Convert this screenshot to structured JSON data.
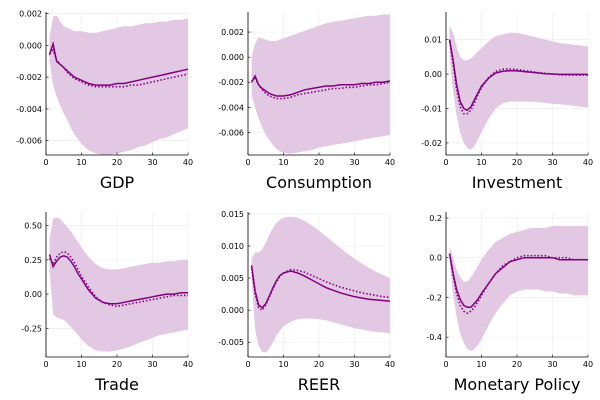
{
  "colors": {
    "line": "#800080",
    "band": "#e2c8e2",
    "grid": "#ebebeb",
    "axis": "#000000"
  },
  "chart_data": [
    {
      "type": "line",
      "title": "GDP",
      "xlim": [
        0,
        40
      ],
      "ylim": [
        -0.0069,
        0.0021
      ],
      "xticks": [
        0,
        10,
        20,
        30,
        40
      ],
      "yticks": [
        -0.006,
        -0.004,
        -0.002,
        0.0,
        0.002
      ],
      "yticklabels": [
        "-0.006",
        "-0.004",
        "-0.002",
        "0.000",
        "0.002"
      ],
      "grid": true,
      "x": [
        1,
        2,
        3,
        4,
        5,
        6,
        7,
        8,
        9,
        10,
        12,
        14,
        16,
        18,
        20,
        22,
        24,
        26,
        28,
        30,
        32,
        34,
        36,
        38,
        40
      ],
      "series": [
        {
          "style": "solid",
          "values": [
            -0.0006,
            0.0001,
            -0.001,
            -0.0012,
            -0.0014,
            -0.0016,
            -0.0018,
            -0.002,
            -0.0021,
            -0.0022,
            -0.0024,
            -0.0025,
            -0.0025,
            -0.0025,
            -0.0024,
            -0.0024,
            -0.0023,
            -0.0022,
            -0.0021,
            -0.002,
            -0.0019,
            -0.0018,
            -0.0017,
            -0.0016,
            -0.0015
          ]
        },
        {
          "style": "dotted",
          "values": [
            -0.0005,
            -0.0003,
            -0.0009,
            -0.0012,
            -0.0014,
            -0.0017,
            -0.0019,
            -0.0021,
            -0.0022,
            -0.0023,
            -0.0025,
            -0.0026,
            -0.0026,
            -0.0026,
            -0.0026,
            -0.0026,
            -0.0025,
            -0.0025,
            -0.0024,
            -0.0023,
            -0.0022,
            -0.0021,
            -0.002,
            -0.0019,
            -0.0018
          ]
        }
      ],
      "band": {
        "upper": [
          0.0005,
          0.0018,
          0.0019,
          0.0015,
          0.0012,
          0.0011,
          0.001,
          0.0009,
          0.0009,
          0.0009,
          0.0008,
          0.0008,
          0.0009,
          0.001,
          0.0011,
          0.0012,
          0.0012,
          0.0013,
          0.0014,
          0.0014,
          0.0015,
          0.0015,
          0.0016,
          0.0016,
          0.0017
        ],
        "lower": [
          -0.001,
          -0.0025,
          -0.0032,
          -0.0038,
          -0.0043,
          -0.0047,
          -0.0052,
          -0.0056,
          -0.0059,
          -0.0062,
          -0.0066,
          -0.0068,
          -0.0069,
          -0.0069,
          -0.0068,
          -0.0067,
          -0.0066,
          -0.0064,
          -0.0063,
          -0.0061,
          -0.0059,
          -0.0058,
          -0.0056,
          -0.0054,
          -0.0052
        ]
      }
    },
    {
      "type": "line",
      "title": "Consumption",
      "xlim": [
        0,
        40
      ],
      "ylim": [
        -0.0078,
        0.0036
      ],
      "xticks": [
        0,
        10,
        20,
        30,
        40
      ],
      "yticks": [
        -0.006,
        -0.004,
        -0.002,
        0.0,
        0.002
      ],
      "yticklabels": [
        "-0.006",
        "-0.004",
        "-0.002",
        "0.000",
        "0.002"
      ],
      "grid": true,
      "x": [
        1,
        2,
        3,
        4,
        5,
        6,
        7,
        8,
        9,
        10,
        12,
        14,
        16,
        18,
        20,
        22,
        24,
        26,
        28,
        30,
        32,
        34,
        36,
        38,
        40
      ],
      "series": [
        {
          "style": "solid",
          "values": [
            -0.002,
            -0.0015,
            -0.0022,
            -0.0025,
            -0.0027,
            -0.0029,
            -0.003,
            -0.0031,
            -0.0031,
            -0.0031,
            -0.003,
            -0.0028,
            -0.0026,
            -0.0025,
            -0.0024,
            -0.0023,
            -0.0023,
            -0.0022,
            -0.0022,
            -0.0022,
            -0.0021,
            -0.0021,
            -0.002,
            -0.002,
            -0.0019
          ]
        },
        {
          "style": "dotted",
          "values": [
            -0.0019,
            -0.0017,
            -0.0022,
            -0.0026,
            -0.0029,
            -0.0031,
            -0.0032,
            -0.0033,
            -0.0033,
            -0.0033,
            -0.0032,
            -0.003,
            -0.0029,
            -0.0028,
            -0.0027,
            -0.0026,
            -0.0025,
            -0.0025,
            -0.0024,
            -0.0024,
            -0.0023,
            -0.0022,
            -0.0022,
            -0.0021,
            -0.002
          ]
        }
      ],
      "band": {
        "upper": [
          0.0,
          0.0011,
          0.0016,
          0.0015,
          0.0014,
          0.0013,
          0.0013,
          0.0013,
          0.0014,
          0.0015,
          0.0017,
          0.0019,
          0.0021,
          0.0023,
          0.0025,
          0.0027,
          0.0028,
          0.0029,
          0.003,
          0.0031,
          0.0032,
          0.0033,
          0.0033,
          0.0034,
          0.0034
        ],
        "lower": [
          -0.003,
          -0.004,
          -0.0049,
          -0.0056,
          -0.0062,
          -0.0066,
          -0.007,
          -0.0073,
          -0.0075,
          -0.0076,
          -0.0077,
          -0.0076,
          -0.0075,
          -0.0074,
          -0.0072,
          -0.0071,
          -0.007,
          -0.0069,
          -0.0068,
          -0.0067,
          -0.0066,
          -0.0065,
          -0.0064,
          -0.0063,
          -0.0062
        ]
      }
    },
    {
      "type": "line",
      "title": "Investment",
      "xlim": [
        0,
        40
      ],
      "ylim": [
        -0.0235,
        0.018
      ],
      "xticks": [
        0,
        10,
        20,
        30,
        40
      ],
      "yticks": [
        -0.02,
        -0.01,
        0.0,
        0.01
      ],
      "yticklabels": [
        "-0.02",
        "-0.01",
        "0.00",
        "0.01"
      ],
      "grid": true,
      "x": [
        1,
        2,
        3,
        4,
        5,
        6,
        7,
        8,
        9,
        10,
        12,
        14,
        16,
        18,
        20,
        22,
        24,
        26,
        28,
        30,
        32,
        34,
        36,
        38,
        40
      ],
      "series": [
        {
          "style": "solid",
          "values": [
            0.01,
            0.004,
            -0.003,
            -0.008,
            -0.01,
            -0.0105,
            -0.0095,
            -0.0075,
            -0.0055,
            -0.0035,
            -0.0012,
            0.0003,
            0.0008,
            0.001,
            0.0009,
            0.0007,
            0.0005,
            0.0003,
            0.0001,
            0.0,
            -0.0001,
            -0.0001,
            -0.0001,
            -0.0001,
            -0.0001
          ]
        },
        {
          "style": "dotted",
          "values": [
            0.0095,
            0.003,
            -0.0045,
            -0.0095,
            -0.0115,
            -0.0115,
            -0.0105,
            -0.0085,
            -0.006,
            -0.004,
            -0.001,
            0.0008,
            0.0014,
            0.0015,
            0.0013,
            0.001,
            0.0007,
            0.0004,
            0.0002,
            0.0,
            -0.0002,
            -0.0003,
            -0.0003,
            -0.0003,
            -0.0003
          ]
        }
      ],
      "band": {
        "upper": [
          0.014,
          0.012,
          0.008,
          0.005,
          0.004,
          0.004,
          0.0045,
          0.0055,
          0.0065,
          0.0075,
          0.0095,
          0.011,
          0.0115,
          0.012,
          0.012,
          0.0115,
          0.011,
          0.0105,
          0.01,
          0.0095,
          0.009,
          0.0088,
          0.0085,
          0.0083,
          0.008
        ],
        "lower": [
          0.005,
          -0.005,
          -0.012,
          -0.017,
          -0.02,
          -0.0215,
          -0.022,
          -0.021,
          -0.019,
          -0.017,
          -0.013,
          -0.01,
          -0.0085,
          -0.008,
          -0.008,
          -0.008,
          -0.008,
          -0.0082,
          -0.0084,
          -0.0086,
          -0.0088,
          -0.009,
          -0.0092,
          -0.0095,
          -0.0098
        ]
      }
    },
    {
      "type": "line",
      "title": "Trade",
      "xlim": [
        0,
        40
      ],
      "ylim": [
        -0.46,
        0.6
      ],
      "xticks": [
        0,
        10,
        20,
        30,
        40
      ],
      "yticks": [
        -0.25,
        0.0,
        0.25,
        0.5
      ],
      "yticklabels": [
        "-0.25",
        "0.00",
        "0.25",
        "0.50"
      ],
      "grid": true,
      "x": [
        1,
        2,
        3,
        4,
        5,
        6,
        7,
        8,
        9,
        10,
        12,
        14,
        16,
        18,
        20,
        22,
        24,
        26,
        28,
        30,
        32,
        34,
        36,
        38,
        40
      ],
      "series": [
        {
          "style": "solid",
          "values": [
            0.29,
            0.2,
            0.24,
            0.27,
            0.28,
            0.27,
            0.24,
            0.2,
            0.15,
            0.11,
            0.03,
            -0.03,
            -0.06,
            -0.07,
            -0.07,
            -0.06,
            -0.05,
            -0.04,
            -0.03,
            -0.02,
            -0.01,
            0.0,
            0.0,
            0.01,
            0.01
          ]
        },
        {
          "style": "dotted",
          "values": [
            0.26,
            0.22,
            0.27,
            0.3,
            0.31,
            0.3,
            0.27,
            0.23,
            0.18,
            0.13,
            0.05,
            -0.02,
            -0.06,
            -0.08,
            -0.09,
            -0.08,
            -0.07,
            -0.06,
            -0.05,
            -0.04,
            -0.03,
            -0.02,
            -0.01,
            -0.01,
            -0.01
          ]
        }
      ],
      "band": {
        "upper": [
          0.4,
          0.55,
          0.56,
          0.55,
          0.52,
          0.49,
          0.46,
          0.42,
          0.38,
          0.34,
          0.27,
          0.22,
          0.19,
          0.18,
          0.18,
          0.19,
          0.2,
          0.21,
          0.22,
          0.23,
          0.23,
          0.24,
          0.24,
          0.25,
          0.25
        ],
        "lower": [
          0.18,
          -0.15,
          -0.17,
          -0.18,
          -0.19,
          -0.21,
          -0.24,
          -0.27,
          -0.3,
          -0.33,
          -0.38,
          -0.41,
          -0.42,
          -0.42,
          -0.41,
          -0.4,
          -0.38,
          -0.36,
          -0.34,
          -0.32,
          -0.3,
          -0.29,
          -0.28,
          -0.27,
          -0.26
        ]
      }
    },
    {
      "type": "line",
      "title": "REER",
      "xlim": [
        0,
        40
      ],
      "ylim": [
        -0.0073,
        0.0153
      ],
      "xticks": [
        0,
        10,
        20,
        30,
        40
      ],
      "yticks": [
        -0.005,
        0.0,
        0.005,
        0.01,
        0.015
      ],
      "yticklabels": [
        "-0.005",
        "0.000",
        "0.005",
        "0.010",
        "0.015"
      ],
      "grid": true,
      "x": [
        1,
        2,
        3,
        4,
        5,
        6,
        7,
        8,
        9,
        10,
        12,
        14,
        16,
        18,
        20,
        22,
        24,
        26,
        28,
        30,
        32,
        34,
        36,
        38,
        40
      ],
      "series": [
        {
          "style": "solid",
          "values": [
            0.007,
            0.003,
            0.0008,
            0.0004,
            0.001,
            0.0022,
            0.0035,
            0.0046,
            0.0054,
            0.0058,
            0.0061,
            0.0058,
            0.0053,
            0.0047,
            0.0041,
            0.0035,
            0.0031,
            0.0027,
            0.0024,
            0.0021,
            0.0019,
            0.0017,
            0.0016,
            0.0015,
            0.0014
          ]
        },
        {
          "style": "dotted",
          "values": [
            0.0065,
            0.0025,
            0.0004,
            0.0,
            0.0008,
            0.002,
            0.0033,
            0.0044,
            0.0053,
            0.0058,
            0.0063,
            0.0062,
            0.0059,
            0.0054,
            0.0049,
            0.0044,
            0.004,
            0.0036,
            0.0033,
            0.003,
            0.0027,
            0.0025,
            0.0023,
            0.0021,
            0.002
          ]
        }
      ],
      "band": {
        "upper": [
          0.008,
          0.009,
          0.009,
          0.0095,
          0.0105,
          0.0118,
          0.0128,
          0.0136,
          0.0141,
          0.0144,
          0.0146,
          0.0144,
          0.0139,
          0.0132,
          0.0124,
          0.0115,
          0.0106,
          0.0097,
          0.0088,
          0.008,
          0.0073,
          0.0066,
          0.006,
          0.0055,
          0.005
        ],
        "lower": [
          0.005,
          -0.003,
          -0.0055,
          -0.0065,
          -0.0066,
          -0.006,
          -0.005,
          -0.004,
          -0.0032,
          -0.0025,
          -0.0018,
          -0.0014,
          -0.0013,
          -0.0013,
          -0.0014,
          -0.0016,
          -0.0019,
          -0.0022,
          -0.0025,
          -0.0028,
          -0.003,
          -0.0032,
          -0.0034,
          -0.0035,
          -0.0036
        ]
      }
    },
    {
      "type": "line",
      "title": "Monetary Policy",
      "xlim": [
        0,
        40
      ],
      "ylim": [
        -0.5,
        0.23
      ],
      "xticks": [
        0,
        10,
        20,
        30,
        40
      ],
      "yticks": [
        -0.4,
        -0.2,
        0.0,
        0.2
      ],
      "yticklabels": [
        "-0.4",
        "-0.2",
        "0.0",
        "0.2"
      ],
      "grid": true,
      "x": [
        1,
        2,
        3,
        4,
        5,
        6,
        7,
        8,
        9,
        10,
        12,
        14,
        16,
        18,
        20,
        22,
        24,
        26,
        28,
        30,
        32,
        34,
        36,
        38,
        40
      ],
      "series": [
        {
          "style": "solid",
          "values": [
            0.02,
            -0.08,
            -0.16,
            -0.21,
            -0.24,
            -0.25,
            -0.25,
            -0.23,
            -0.21,
            -0.18,
            -0.13,
            -0.08,
            -0.05,
            -0.02,
            -0.01,
            0.0,
            0.0,
            0.0,
            0.0,
            0.0,
            -0.01,
            -0.01,
            -0.01,
            -0.01,
            -0.01
          ]
        },
        {
          "style": "dotted",
          "values": [
            0.02,
            -0.09,
            -0.18,
            -0.24,
            -0.27,
            -0.28,
            -0.27,
            -0.25,
            -0.22,
            -0.19,
            -0.13,
            -0.08,
            -0.04,
            -0.02,
            0.0,
            0.01,
            0.01,
            0.01,
            0.01,
            0.0,
            0.0,
            0.0,
            -0.01,
            -0.01,
            -0.01
          ]
        }
      ],
      "band": {
        "upper": [
          0.06,
          0.0,
          -0.06,
          -0.1,
          -0.12,
          -0.12,
          -0.1,
          -0.07,
          -0.04,
          -0.01,
          0.04,
          0.08,
          0.1,
          0.12,
          0.13,
          0.14,
          0.15,
          0.15,
          0.15,
          0.16,
          0.16,
          0.16,
          0.16,
          0.16,
          0.16
        ],
        "lower": [
          -0.02,
          -0.18,
          -0.3,
          -0.38,
          -0.43,
          -0.46,
          -0.47,
          -0.46,
          -0.44,
          -0.41,
          -0.34,
          -0.28,
          -0.23,
          -0.19,
          -0.17,
          -0.16,
          -0.16,
          -0.16,
          -0.17,
          -0.17,
          -0.18,
          -0.18,
          -0.19,
          -0.19,
          -0.19
        ]
      }
    }
  ]
}
